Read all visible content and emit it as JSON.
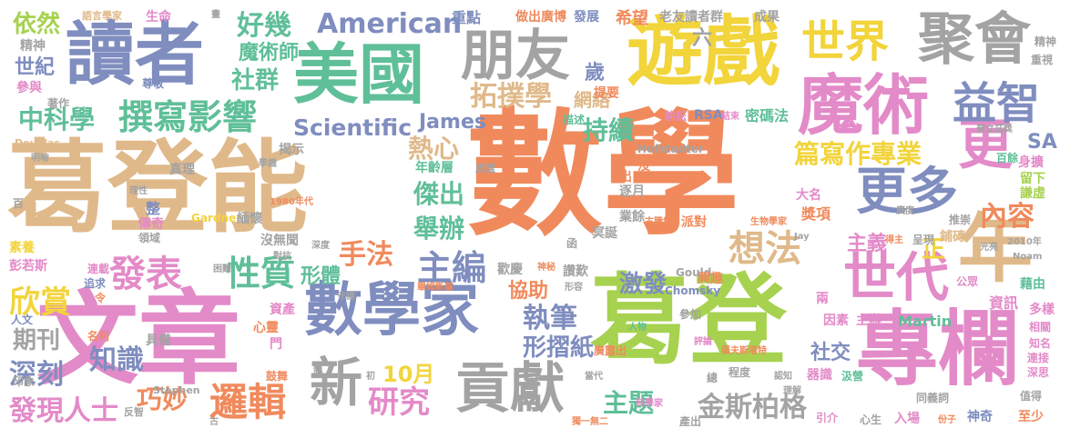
{
  "palette": {
    "orange": "#f08a5d",
    "tan": "#e0b98a",
    "blue": "#7f8dbf",
    "green": "#5fbf98",
    "pink": "#e38ac8",
    "gray": "#a3a3a3",
    "yellow": "#f2d43b",
    "lime": "#a6d24f"
  },
  "words": [
    {
      "id": "w1",
      "text": "數學",
      "c": "orange"
    },
    {
      "id": "w2",
      "text": "葛登能",
      "c": "tan"
    },
    {
      "id": "w3",
      "text": "葛登",
      "c": "lime"
    },
    {
      "id": "w4",
      "text": "文章",
      "c": "pink"
    },
    {
      "id": "w5",
      "text": "專欄",
      "c": "pink"
    },
    {
      "id": "w6",
      "text": "遊戲",
      "c": "yellow"
    },
    {
      "id": "w7",
      "text": "讀者",
      "c": "blue"
    },
    {
      "id": "w8",
      "text": "美國",
      "c": "green"
    },
    {
      "id": "w9",
      "text": "魔術",
      "c": "pink"
    },
    {
      "id": "w10",
      "text": "數學家",
      "c": "blue"
    },
    {
      "id": "w11",
      "text": "朋友",
      "c": "gray"
    },
    {
      "id": "w12",
      "text": "聚會",
      "c": "gray"
    },
    {
      "id": "w13",
      "text": "年",
      "c": "tan"
    },
    {
      "id": "w14",
      "text": "更",
      "c": "pink"
    },
    {
      "id": "w15",
      "text": "世代",
      "c": "pink"
    },
    {
      "id": "w16",
      "text": "更多",
      "c": "blue"
    },
    {
      "id": "w17",
      "text": "貢獻",
      "c": "gray"
    },
    {
      "id": "w18",
      "text": "新",
      "c": "gray"
    },
    {
      "id": "w19",
      "text": "世界",
      "c": "yellow"
    },
    {
      "id": "w20",
      "text": "益智",
      "c": "blue"
    },
    {
      "id": "w21",
      "text": "撰寫影響",
      "c": "green"
    },
    {
      "id": "w22",
      "text": "拓撲學",
      "c": "tan"
    },
    {
      "id": "w23",
      "text": "American",
      "c": "blue"
    },
    {
      "id": "w24",
      "text": "Scientific",
      "c": "blue"
    },
    {
      "id": "w25",
      "text": "金斯柏格",
      "c": "gray"
    },
    {
      "id": "w26",
      "text": "好幾",
      "c": "green"
    },
    {
      "id": "w27",
      "text": "社群",
      "c": "green"
    },
    {
      "id": "w28",
      "text": "魔術師",
      "c": "green"
    },
    {
      "id": "w29",
      "text": "中科學",
      "c": "green"
    },
    {
      "id": "w30",
      "text": "邏輯",
      "c": "orange"
    },
    {
      "id": "w31",
      "text": "研究",
      "c": "pink"
    },
    {
      "id": "w32",
      "text": "主編",
      "c": "blue"
    },
    {
      "id": "w33",
      "text": "執筆",
      "c": "blue"
    },
    {
      "id": "w34",
      "text": "想法",
      "c": "tan"
    },
    {
      "id": "w35",
      "text": "發表",
      "c": "pink"
    },
    {
      "id": "w36",
      "text": "性質",
      "c": "green"
    },
    {
      "id": "w37",
      "text": "欣賞",
      "c": "yellow"
    },
    {
      "id": "w38",
      "text": "手法",
      "c": "orange"
    },
    {
      "id": "w39",
      "text": "形體",
      "c": "green"
    },
    {
      "id": "w40",
      "text": "主題",
      "c": "green"
    },
    {
      "id": "w41",
      "text": "內容",
      "c": "orange"
    },
    {
      "id": "w42",
      "text": "篇寫作專業",
      "c": "yellow"
    },
    {
      "id": "w43",
      "text": "舉辦",
      "c": "green"
    },
    {
      "id": "w44",
      "text": "傑出",
      "c": "green"
    },
    {
      "id": "w45",
      "text": "熱心",
      "c": "tan"
    },
    {
      "id": "w46",
      "text": "持續",
      "c": "green"
    },
    {
      "id": "w47",
      "text": "形摺紙",
      "c": "blue"
    },
    {
      "id": "w48",
      "text": "發現人士",
      "c": "pink"
    },
    {
      "id": "w49",
      "text": "巧妙",
      "c": "orange"
    },
    {
      "id": "w50",
      "text": "知識",
      "c": "blue"
    },
    {
      "id": "w51",
      "text": "深刻",
      "c": "blue"
    },
    {
      "id": "w52",
      "text": "期刊",
      "c": "gray"
    },
    {
      "id": "w53",
      "text": "依然",
      "c": "lime"
    },
    {
      "id": "w54",
      "text": "世紀",
      "c": "blue"
    },
    {
      "id": "w55",
      "text": "10月",
      "c": "yellow"
    },
    {
      "id": "w56",
      "text": "James",
      "c": "blue"
    },
    {
      "id": "w57",
      "text": "協助",
      "c": "orange"
    },
    {
      "id": "w58",
      "text": "激發",
      "c": "blue"
    },
    {
      "id": "w59",
      "text": "主義",
      "c": "pink"
    },
    {
      "id": "w60",
      "text": "正",
      "c": "yellow"
    },
    {
      "id": "w61",
      "text": "社交",
      "c": "blue"
    },
    {
      "id": "w62",
      "text": "SA",
      "c": "blue"
    },
    {
      "id": "w63",
      "text": "網絡",
      "c": "tan"
    },
    {
      "id": "w64",
      "text": "歲",
      "c": "blue"
    },
    {
      "id": "w65",
      "text": "希望",
      "c": "orange"
    },
    {
      "id": "w66",
      "text": "生命",
      "c": "pink"
    },
    {
      "id": "w67",
      "text": "語言學家",
      "c": "tan"
    },
    {
      "id": "w68",
      "text": "重點",
      "c": "blue"
    },
    {
      "id": "w69",
      "text": "做出廣博",
      "c": "orange"
    },
    {
      "id": "w70",
      "text": "發展",
      "c": "blue"
    },
    {
      "id": "w71",
      "text": "老友讀者群",
      "c": "gray"
    },
    {
      "id": "w72",
      "text": "成果",
      "c": "gray"
    },
    {
      "id": "w73",
      "text": "六",
      "c": "gray"
    },
    {
      "id": "w74",
      "text": "精神",
      "c": "gray"
    },
    {
      "id": "w75",
      "text": "參與",
      "c": "pink"
    },
    {
      "id": "w76",
      "text": "尊敬",
      "c": "blue"
    },
    {
      "id": "w77",
      "text": "著作",
      "c": "gray"
    },
    {
      "id": "w78",
      "text": "提要",
      "c": "orange"
    },
    {
      "id": "w79",
      "text": "描述",
      "c": "green"
    },
    {
      "id": "w80",
      "text": "耕耘",
      "c": "pink"
    },
    {
      "id": "w81",
      "text": "RSA",
      "c": "blue"
    },
    {
      "id": "w82",
      "text": "結束",
      "c": "pink"
    },
    {
      "id": "w83",
      "text": "密碼法",
      "c": "green"
    },
    {
      "id": "w84",
      "text": "揭示",
      "c": "gray"
    },
    {
      "id": "w85",
      "text": "Douglas",
      "c": "tan"
    },
    {
      "id": "w86",
      "text": "Hofstadter",
      "c": "gray"
    },
    {
      "id": "w87",
      "text": "年齡層",
      "c": "green"
    },
    {
      "id": "w88",
      "text": "周遭",
      "c": "gray"
    },
    {
      "id": "w89",
      "text": "沒",
      "c": "orange"
    },
    {
      "id": "w90",
      "text": "出",
      "c": "orange"
    },
    {
      "id": "w91",
      "text": "逐月",
      "c": "gray"
    },
    {
      "id": "w92",
      "text": "大名",
      "c": "pink"
    },
    {
      "id": "w93",
      "text": "獎項",
      "c": "orange"
    },
    {
      "id": "w94",
      "text": "留下",
      "c": "lime"
    },
    {
      "id": "w95",
      "text": "謙虛",
      "c": "lime"
    },
    {
      "id": "w96",
      "text": "百餘",
      "c": "green"
    },
    {
      "id": "w97",
      "text": "身擴",
      "c": "pink"
    },
    {
      "id": "w98",
      "text": "普立茲獎",
      "c": "gray"
    },
    {
      "id": "w99",
      "text": "整",
      "c": "blue"
    },
    {
      "id": "w100",
      "text": "傳奇",
      "c": "pink"
    },
    {
      "id": "w101",
      "text": "領域",
      "c": "gray"
    },
    {
      "id": "w102",
      "text": "Gardner",
      "c": "yellow"
    },
    {
      "id": "w103",
      "text": "緬懷",
      "c": "gray"
    },
    {
      "id": "w104",
      "text": "沒無聞",
      "c": "gray"
    },
    {
      "id": "w105",
      "text": "業餘",
      "c": "gray"
    },
    {
      "id": "w106",
      "text": "函",
      "c": "gray"
    },
    {
      "id": "w107",
      "text": "冥誕",
      "c": "gray"
    },
    {
      "id": "w108",
      "text": "古騰堡",
      "c": "orange"
    },
    {
      "id": "w109",
      "text": "派對",
      "c": "orange"
    },
    {
      "id": "w110",
      "text": "生物學家",
      "c": "orange"
    },
    {
      "id": "w111",
      "text": "推崇",
      "c": "gray"
    },
    {
      "id": "w112",
      "text": "鋪磚",
      "c": "tan"
    },
    {
      "id": "w113",
      "text": "光亮",
      "c": "gray"
    },
    {
      "id": "w114",
      "text": "2010年",
      "c": "gray"
    },
    {
      "id": "w115",
      "text": "素養",
      "c": "yellow"
    },
    {
      "id": "w116",
      "text": "彭若斯",
      "c": "pink"
    },
    {
      "id": "w117",
      "text": "連載",
      "c": "pink"
    },
    {
      "id": "w118",
      "text": "追求",
      "c": "blue"
    },
    {
      "id": "w119",
      "text": "令",
      "c": "orange"
    },
    {
      "id": "w120",
      "text": "讚歎",
      "c": "gray"
    },
    {
      "id": "w121",
      "text": "歡慶",
      "c": "gray"
    },
    {
      "id": "w122",
      "text": "神秘",
      "c": "orange"
    },
    {
      "id": "w123",
      "text": "Gould",
      "c": "gray"
    },
    {
      "id": "w124",
      "text": "Chomsky",
      "c": "blue"
    },
    {
      "id": "w125",
      "text": "Noam",
      "c": "gray"
    },
    {
      "id": "w126",
      "text": "公眾",
      "c": "pink"
    },
    {
      "id": "w127",
      "text": "藉由",
      "c": "green"
    },
    {
      "id": "w128",
      "text": "兩",
      "c": "pink"
    },
    {
      "id": "w129",
      "text": "資產",
      "c": "pink"
    },
    {
      "id": "w130",
      "text": "心靈",
      "c": "orange"
    },
    {
      "id": "w131",
      "text": "門",
      "c": "pink"
    },
    {
      "id": "w132",
      "text": "具備",
      "c": "gray"
    },
    {
      "id": "w133",
      "text": "人文",
      "c": "blue"
    },
    {
      "id": "w134",
      "text": "名利",
      "c": "orange"
    },
    {
      "id": "w135",
      "text": "參加",
      "c": "gray"
    },
    {
      "id": "w136",
      "text": "人物",
      "c": "green"
    },
    {
      "id": "w137",
      "text": "因素",
      "c": "pink"
    },
    {
      "id": "w138",
      "text": "主辦",
      "c": "pink"
    },
    {
      "id": "w139",
      "text": "Martin",
      "c": "green"
    },
    {
      "id": "w140",
      "text": "資訊",
      "c": "pink"
    },
    {
      "id": "w141",
      "text": "多樣",
      "c": "pink"
    },
    {
      "id": "w142",
      "text": "相關",
      "c": "pink"
    },
    {
      "id": "w143",
      "text": "知名",
      "c": "pink"
    },
    {
      "id": "w144",
      "text": "連接",
      "c": "pink"
    },
    {
      "id": "w145",
      "text": "深思",
      "c": "pink"
    },
    {
      "id": "w146",
      "text": "印象",
      "c": "gray"
    },
    {
      "id": "w147",
      "text": "鼓舞",
      "c": "orange"
    },
    {
      "id": "w148",
      "text": "Stephen",
      "c": "gray"
    },
    {
      "id": "w149",
      "text": "反智",
      "c": "gray"
    },
    {
      "id": "w150",
      "text": "器識",
      "c": "pink"
    },
    {
      "id": "w151",
      "text": "汲營",
      "c": "green"
    },
    {
      "id": "w152",
      "text": "同義詞",
      "c": "gray"
    },
    {
      "id": "w153",
      "text": "值得",
      "c": "gray"
    },
    {
      "id": "w154",
      "text": "引介",
      "c": "pink"
    },
    {
      "id": "w155",
      "text": "心生",
      "c": "gray"
    },
    {
      "id": "w156",
      "text": "入場",
      "c": "pink"
    },
    {
      "id": "w157",
      "text": "神奇",
      "c": "blue"
    },
    {
      "id": "w158",
      "text": "至少",
      "c": "orange"
    },
    {
      "id": "w159",
      "text": "產出",
      "c": "gray"
    },
    {
      "id": "w160",
      "text": "總",
      "c": "gray"
    },
    {
      "id": "w161",
      "text": "獨一無二",
      "c": "orange"
    },
    {
      "id": "w162",
      "text": "科學家",
      "c": "pink"
    },
    {
      "id": "w163",
      "text": "程度",
      "c": "gray"
    },
    {
      "id": "w164",
      "text": "當代",
      "c": "gray"
    },
    {
      "id": "w165",
      "text": "廣露出",
      "c": "orange"
    },
    {
      "id": "w166",
      "text": "蛋夫斯塔特",
      "c": "orange"
    },
    {
      "id": "w167",
      "text": "評論",
      "c": "pink"
    },
    {
      "id": "w168",
      "text": "理解",
      "c": "gray"
    },
    {
      "id": "w169",
      "text": "認知",
      "c": "gray"
    },
    {
      "id": "w170",
      "text": "形容",
      "c": "gray"
    },
    {
      "id": "w171",
      "text": "畫",
      "c": "gray"
    },
    {
      "id": "w172",
      "text": "明喻",
      "c": "gray"
    },
    {
      "id": "w173",
      "text": "真理",
      "c": "gray"
    },
    {
      "id": "w174",
      "text": "理性",
      "c": "gray"
    },
    {
      "id": "w175",
      "text": "百",
      "c": "gray"
    },
    {
      "id": "w176",
      "text": "學識",
      "c": "gray"
    },
    {
      "id": "w177",
      "text": "1980年代",
      "c": "orange"
    },
    {
      "id": "w178",
      "text": "深度",
      "c": "gray"
    },
    {
      "id": "w179",
      "text": "對抗",
      "c": "gray"
    },
    {
      "id": "w180",
      "text": "困難",
      "c": "gray"
    },
    {
      "id": "w181",
      "text": "守護",
      "c": "gray"
    },
    {
      "id": "w182",
      "text": "畢姆斯基",
      "c": "orange"
    },
    {
      "id": "w183",
      "text": "古",
      "c": "gray"
    },
    {
      "id": "w184",
      "text": "初",
      "c": "gray"
    },
    {
      "id": "w185",
      "text": "制",
      "c": "gray"
    },
    {
      "id": "w186",
      "text": "興趣",
      "c": "orange"
    },
    {
      "id": "w187",
      "text": "呈現",
      "c": "gray"
    },
    {
      "id": "w188",
      "text": "Jay",
      "c": "gray"
    },
    {
      "id": "w189",
      "text": "得主",
      "c": "orange"
    },
    {
      "id": "w190",
      "text": "廣度",
      "c": "gray"
    },
    {
      "id": "w191",
      "text": "份子",
      "c": "orange"
    },
    {
      "id": "w192",
      "text": "重視",
      "c": "gray"
    },
    {
      "id": "w193",
      "text": "精神",
      "c": "gray"
    }
  ]
}
